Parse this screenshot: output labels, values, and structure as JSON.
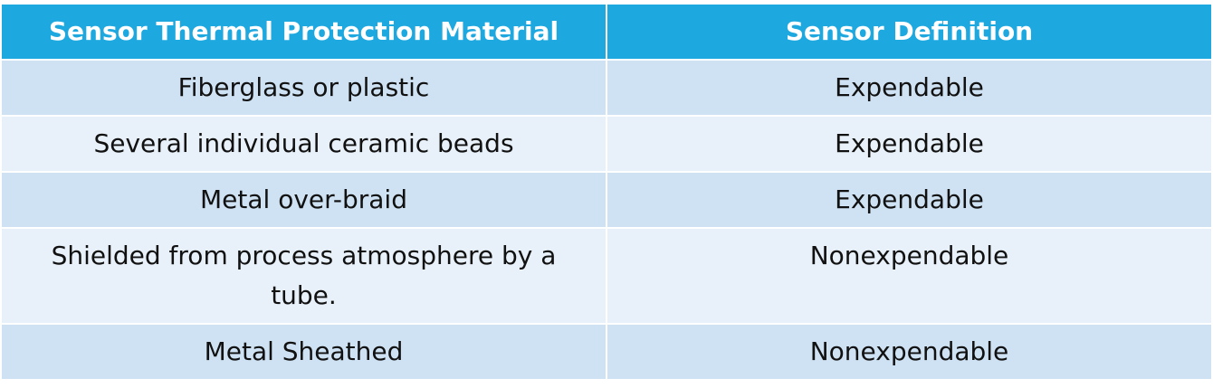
{
  "header": {
    "columns": [
      "Sensor Thermal Protection Material",
      "Sensor Definition"
    ]
  },
  "table": {
    "rows": [
      [
        "Fiberglass or plastic",
        "Expendable"
      ],
      [
        "Several individual ceramic beads",
        "Expendable"
      ],
      [
        "Metal over-braid",
        "Expendable"
      ],
      [
        "Shielded from process atmosphere by a tube.",
        "Nonexpendable"
      ],
      [
        "Metal Sheathed",
        "Nonexpendable"
      ]
    ]
  }
}
